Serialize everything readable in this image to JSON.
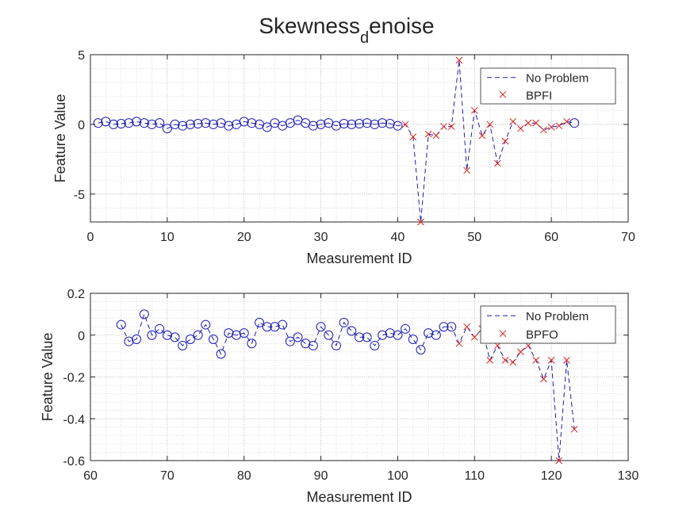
{
  "figure": {
    "title_main": "Skewness",
    "title_sub": "d",
    "title_rest": "enoise"
  },
  "colors": {
    "line": "#1f1fa8",
    "circle": "#1a1ab8",
    "cross": "#e0201c",
    "grid": "#d6d6d6",
    "axis": "#262626"
  },
  "chart_data": [
    {
      "type": "line",
      "xlabel": "Measurement ID",
      "ylabel": "Feature Value",
      "xlim": [
        0,
        70
      ],
      "ylim": [
        -7,
        5
      ],
      "xticks": [
        0,
        10,
        20,
        30,
        40,
        50,
        60,
        70
      ],
      "yticks": [
        5,
        0,
        -5
      ],
      "grid": "on (major and minor)",
      "legend_position": "top-right",
      "legend": [
        {
          "label": "No Problem",
          "marker": "dashed-line"
        },
        {
          "label": "BPFI",
          "marker": "x"
        }
      ],
      "series": [
        {
          "name": "No Problem",
          "marker": "o",
          "x": [
            1,
            2,
            3,
            4,
            5,
            6,
            7,
            8,
            9,
            10,
            11,
            12,
            13,
            14,
            15,
            16,
            17,
            18,
            19,
            20,
            21,
            22,
            23,
            24,
            25,
            26,
            27,
            28,
            29,
            30,
            31,
            32,
            33,
            34,
            35,
            36,
            37,
            38,
            39,
            40,
            63
          ],
          "y": [
            0.1,
            0.2,
            0.0,
            0.05,
            0.1,
            0.2,
            0.1,
            0.0,
            0.1,
            -0.3,
            0.0,
            -0.1,
            0.0,
            0.05,
            0.1,
            0.0,
            0.1,
            -0.1,
            0.0,
            0.2,
            0.1,
            0.0,
            -0.2,
            0.1,
            -0.1,
            0.1,
            0.3,
            0.1,
            -0.1,
            0.0,
            0.1,
            -0.1,
            0.05,
            0.0,
            0.05,
            0.1,
            0.0,
            0.1,
            0.05,
            -0.1,
            0.1
          ]
        },
        {
          "name": "BPFI",
          "marker": "x",
          "x": [
            41,
            42,
            43,
            44,
            45,
            46,
            47,
            48,
            49,
            50,
            51,
            52,
            53,
            54,
            55,
            56,
            57,
            58,
            59,
            60,
            61,
            62
          ],
          "y": [
            0.0,
            -0.9,
            -7.0,
            -0.7,
            -0.8,
            -0.15,
            -0.15,
            4.6,
            -3.3,
            1.0,
            -0.8,
            0.0,
            -2.8,
            -1.2,
            0.2,
            -0.3,
            0.1,
            0.1,
            -0.4,
            -0.2,
            -0.1,
            0.2
          ]
        }
      ]
    },
    {
      "type": "line",
      "xlabel": "Measurement ID",
      "ylabel": "Feature Value",
      "xlim": [
        60,
        130
      ],
      "ylim": [
        -0.6,
        0.2
      ],
      "xticks": [
        60,
        70,
        80,
        90,
        100,
        110,
        120,
        130
      ],
      "yticks": [
        0.2,
        0,
        -0.2,
        -0.4,
        -0.6
      ],
      "grid": "on (major and minor)",
      "legend_position": "top-right",
      "legend": [
        {
          "label": "No Problem",
          "marker": "dashed-line"
        },
        {
          "label": "BPFO",
          "marker": "x"
        }
      ],
      "series": [
        {
          "name": "No Problem",
          "marker": "o",
          "x": [
            64,
            65,
            66,
            67,
            68,
            69,
            70,
            71,
            72,
            73,
            74,
            75,
            76,
            77,
            78,
            79,
            80,
            81,
            82,
            83,
            84,
            85,
            86,
            87,
            88,
            89,
            90,
            91,
            92,
            93,
            94,
            95,
            96,
            97,
            98,
            99,
            100,
            101,
            102,
            103,
            104,
            105,
            106,
            107
          ],
          "y": [
            0.05,
            -0.03,
            -0.02,
            0.1,
            0.0,
            0.03,
            0.0,
            -0.01,
            -0.05,
            -0.02,
            0.0,
            0.05,
            -0.02,
            -0.09,
            0.01,
            0.0,
            0.01,
            -0.04,
            0.06,
            0.04,
            0.04,
            0.05,
            -0.03,
            -0.01,
            -0.04,
            -0.05,
            0.04,
            0.0,
            -0.05,
            0.06,
            0.02,
            -0.01,
            -0.01,
            -0.05,
            0.0,
            0.01,
            0.0,
            0.03,
            -0.02,
            -0.07,
            0.01,
            0.0,
            0.04,
            0.04
          ]
        },
        {
          "name": "BPFO",
          "marker": "x",
          "x": [
            108,
            109,
            110,
            111,
            112,
            113,
            114,
            115,
            116,
            117,
            118,
            119,
            120,
            121,
            122,
            123
          ],
          "y": [
            -0.04,
            0.04,
            -0.01,
            0.03,
            -0.12,
            -0.05,
            -0.12,
            -0.13,
            -0.08,
            -0.05,
            -0.12,
            -0.21,
            -0.12,
            -0.6,
            -0.12,
            -0.45
          ]
        }
      ]
    }
  ]
}
